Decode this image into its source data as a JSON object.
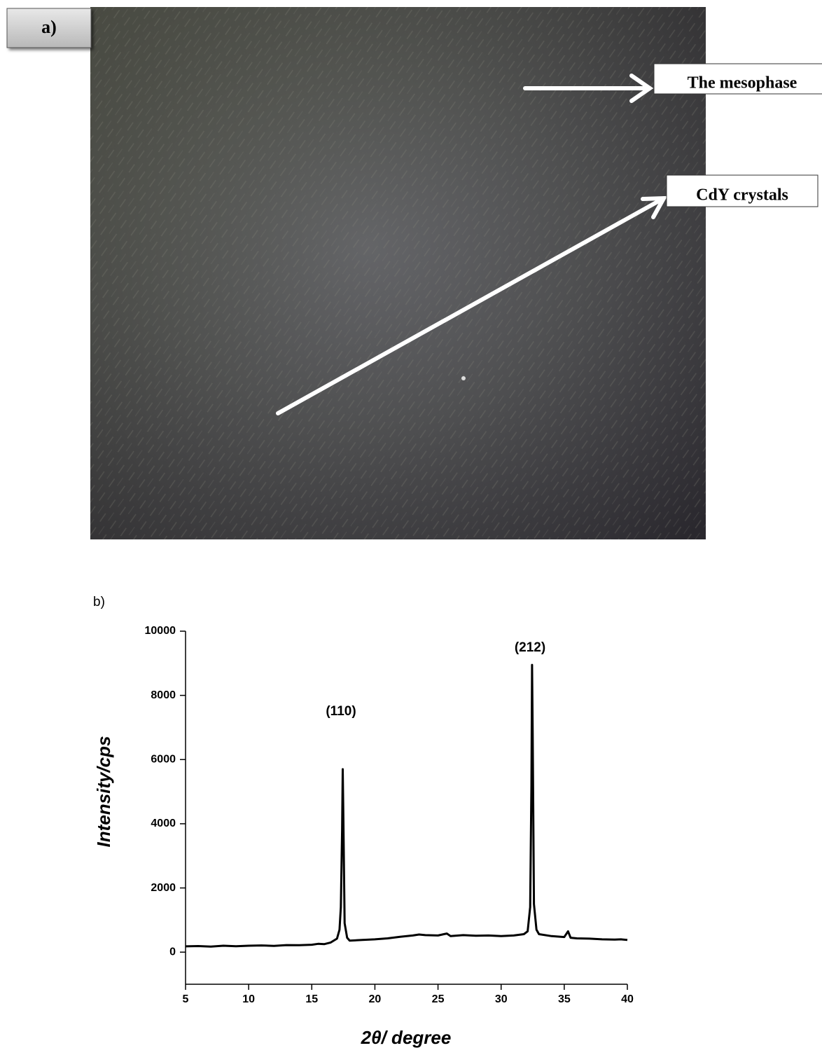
{
  "panel_a": {
    "label": "a)",
    "annotations": [
      "The mesophase",
      "CdY crystals"
    ]
  },
  "chart_data": {
    "type": "line",
    "panel_label": "b)",
    "x_label": "2θ/ degree",
    "y_label": "Intensity/cps",
    "annotations": [
      "(110)",
      "(212)"
    ],
    "x": [
      5,
      6,
      7,
      8,
      9,
      10,
      11,
      12,
      13,
      14,
      15,
      15.5,
      16,
      16.5,
      17,
      17.2,
      17.3,
      17.4,
      17.45,
      17.5,
      17.6,
      17.8,
      18,
      19,
      20,
      21,
      22,
      23,
      23.5,
      24,
      25,
      25.7,
      26,
      27,
      28,
      29,
      30,
      31,
      31.8,
      32.1,
      32.3,
      32.4,
      32.45,
      32.5,
      32.6,
      32.8,
      33,
      34,
      35,
      35.3,
      35.5,
      36,
      37,
      38,
      39,
      39.5,
      40
    ],
    "values": [
      180,
      190,
      175,
      200,
      185,
      200,
      210,
      195,
      220,
      215,
      230,
      260,
      250,
      300,
      420,
      700,
      1400,
      3800,
      5700,
      4200,
      900,
      450,
      360,
      380,
      400,
      430,
      480,
      520,
      550,
      530,
      520,
      580,
      500,
      530,
      510,
      520,
      500,
      520,
      560,
      650,
      1400,
      5200,
      8950,
      6800,
      1500,
      700,
      560,
      500,
      470,
      650,
      450,
      430,
      420,
      400,
      390,
      400,
      380
    ],
    "color": "#000000",
    "xlim": [
      5,
      40
    ],
    "xticks": [
      5,
      10,
      15,
      20,
      25,
      30,
      35,
      40
    ],
    "ylim": [
      -1000,
      10000
    ],
    "yticks": [
      0,
      2000,
      4000,
      6000,
      8000,
      10000
    ]
  }
}
